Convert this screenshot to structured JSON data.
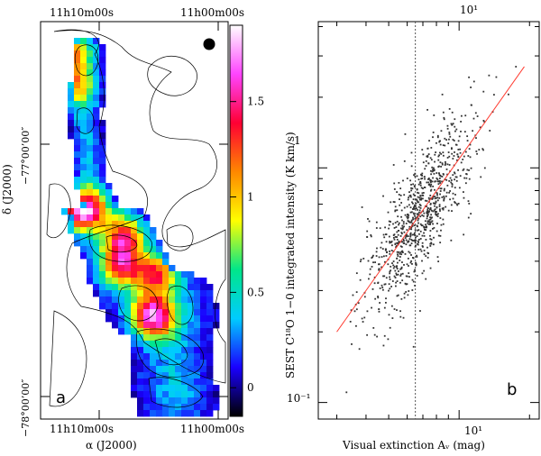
{
  "chart_data": [
    {
      "type": "heatmap",
      "panel_label": "a",
      "xlabel": "α (J2000)",
      "ylabel": "δ (J2000)",
      "x_ticks": [
        "11h10m00s",
        "11h00m00s"
      ],
      "y_ticks": [
        "−77°00’00″",
        "−78°00’00″"
      ],
      "colorbar": {
        "ticks": [
          0,
          0.5,
          1,
          1.5
        ],
        "tick_labels": [
          "0",
          "0.5",
          "1",
          "1.5"
        ],
        "range": [
          -0.15,
          1.9
        ],
        "colormap": [
          "#000000",
          "#1a00ff",
          "#00ccff",
          "#00e68a",
          "#ffff00",
          "#ff8800",
          "#ff0033",
          "#ff44ff",
          "#ffffff"
        ]
      },
      "clumps": [
        {
          "ra": 11.165,
          "dec": -76.78,
          "peak": 1.45
        },
        {
          "ra": 11.16,
          "dec": -76.9,
          "peak": 1.1
        },
        {
          "ra": 11.145,
          "dec": -77.33,
          "peak": 1.75
        },
        {
          "ra": 11.1,
          "dec": -77.42,
          "peak": 1.0
        },
        {
          "ra": 11.105,
          "dec": -77.52,
          "peak": 1.1
        },
        {
          "ra": 11.065,
          "dec": -77.55,
          "peak": 1.15
        },
        {
          "ra": 11.07,
          "dec": -77.7,
          "peak": 1.55
        }
      ]
    },
    {
      "type": "scatter",
      "panel_label": "b",
      "xlabel": "Visual extinction Aᵥ (mag)",
      "ylabel": "SEST C¹⁸O 1−0 integrated intensity (K km/s)",
      "log_x": true,
      "log_y": true,
      "xlim": [
        2.5,
        22
      ],
      "ylim": [
        0.085,
        4.2
      ],
      "x_tick_labels": [
        "10¹"
      ],
      "y_tick_labels": [
        "10⁻¹",
        "1"
      ],
      "vertical_line_x": 6.5,
      "fit_line": {
        "x": [
          3.0,
          19.0
        ],
        "y": [
          0.2,
          2.7
        ],
        "color": "#ff3b30"
      },
      "n_points": 900,
      "point_color": "#333333"
    }
  ]
}
